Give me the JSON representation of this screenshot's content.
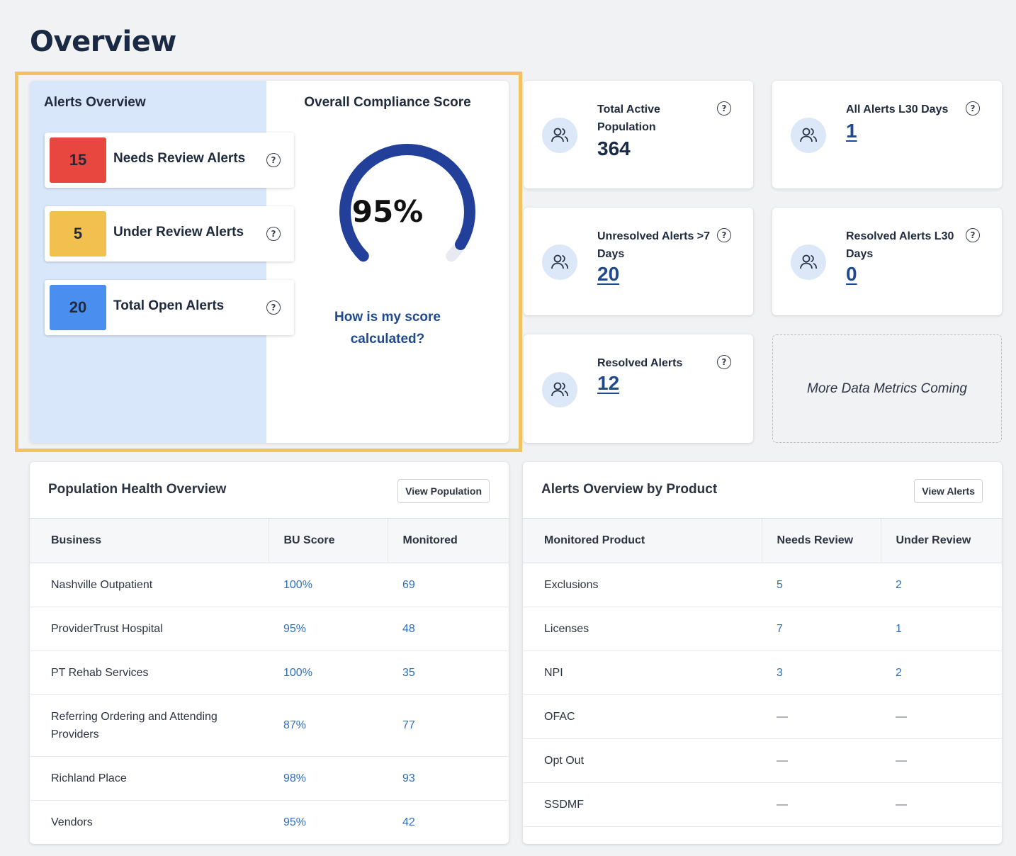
{
  "page": {
    "title": "Overview"
  },
  "alerts_overview": {
    "title": "Alerts Overview",
    "items": [
      {
        "count": "15",
        "label": "Needs Review Alerts",
        "color": "#e8473f"
      },
      {
        "count": "5",
        "label": "Under Review Alerts",
        "color": "#f2c04f"
      },
      {
        "count": "20",
        "label": "Total Open Alerts",
        "color": "#4a8ff0"
      }
    ]
  },
  "compliance": {
    "title": "Overall Compliance Score",
    "score": "95%",
    "score_value": 95,
    "link_line1": "How is my score",
    "link_line2": "calculated?",
    "accent": "#22409a"
  },
  "metrics": [
    {
      "label": "Total Active Population",
      "value": "364",
      "icon": "users-icon"
    },
    {
      "label": "All Alerts L30 Days",
      "value": "1",
      "icon": "users-icon"
    },
    {
      "label": "Unresolved Alerts >7 Days",
      "value": "20",
      "icon": "users-icon"
    },
    {
      "label": "Resolved Alerts L30 Days",
      "value": "0",
      "icon": "users-icon"
    },
    {
      "label": "Resolved Alerts",
      "value": "12",
      "icon": "users-icon"
    }
  ],
  "coming_soon": "More Data Metrics Coming",
  "population": {
    "title": "Population Health Overview",
    "button": "View Population",
    "columns": [
      "Business",
      "BU Score",
      "Monitored"
    ],
    "rows": [
      [
        "Nashville Outpatient",
        "100%",
        "69"
      ],
      [
        "ProviderTrust Hospital",
        "95%",
        "48"
      ],
      [
        "PT Rehab Services",
        "100%",
        "35"
      ],
      [
        "Referring Ordering and Attending Providers",
        "87%",
        "77"
      ],
      [
        "Richland Place",
        "98%",
        "93"
      ],
      [
        "Vendors",
        "95%",
        "42"
      ]
    ]
  },
  "products": {
    "title": "Alerts Overview by Product",
    "button": "View Alerts",
    "columns": [
      "Monitored Product",
      "Needs Review",
      "Under Review"
    ],
    "rows": [
      [
        "Exclusions",
        "5",
        "2"
      ],
      [
        "Licenses",
        "7",
        "1"
      ],
      [
        "NPI",
        "3",
        "2"
      ],
      [
        "OFAC",
        "—",
        "—"
      ],
      [
        "Opt Out",
        "—",
        "—"
      ],
      [
        "SSDMF",
        "—",
        "—"
      ]
    ]
  }
}
